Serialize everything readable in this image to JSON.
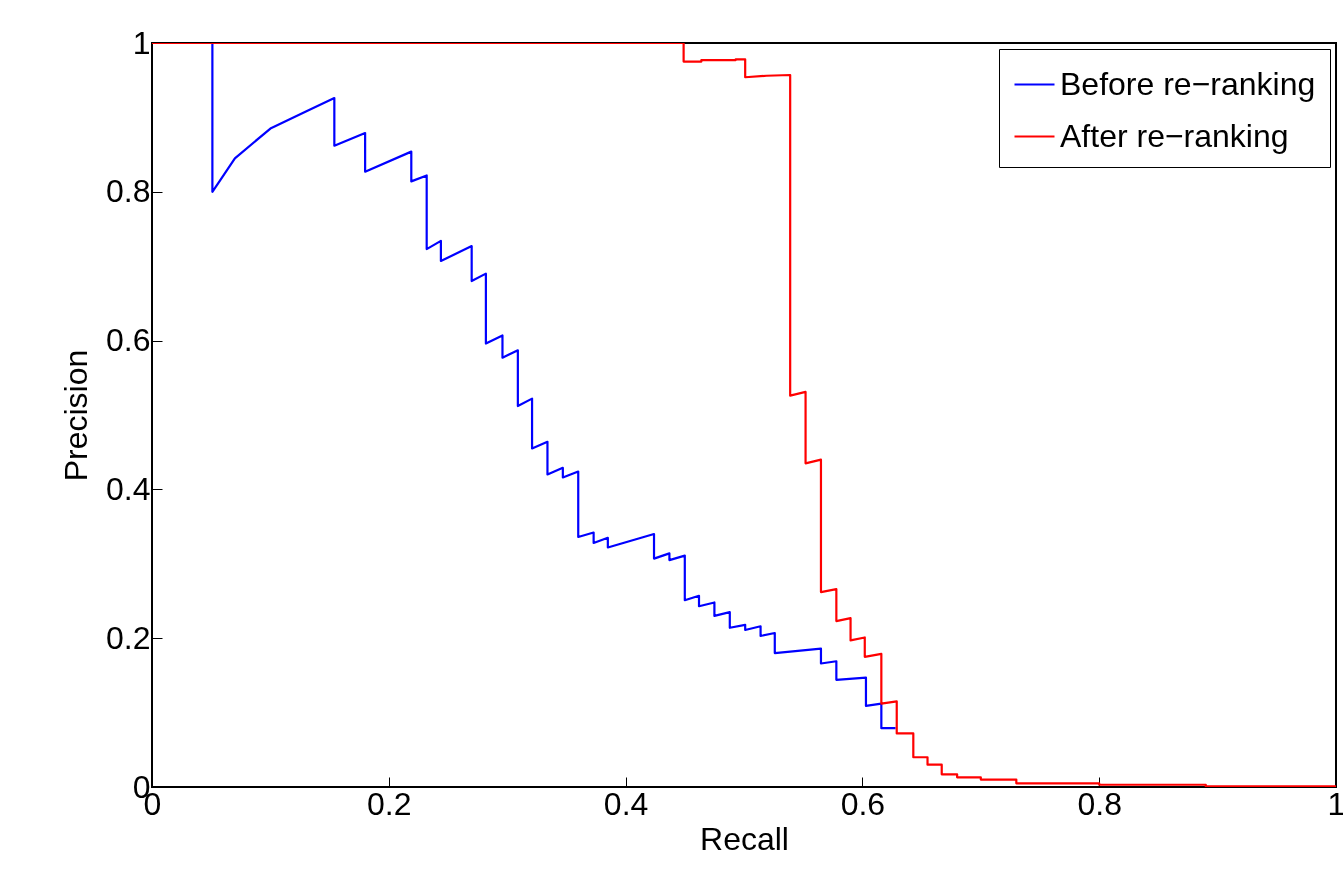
{
  "chart_data": {
    "type": "line",
    "xlabel": "Recall",
    "ylabel": "Precision",
    "xlim": [
      0,
      1
    ],
    "ylim": [
      0,
      1
    ],
    "xticks": [
      0,
      0.2,
      0.4,
      0.6,
      0.8,
      1
    ],
    "yticks": [
      0,
      0.2,
      0.4,
      0.6,
      0.8,
      1
    ],
    "legend": "top right",
    "line_style": "solid",
    "marker": "none",
    "series": [
      {
        "name": "Before re−ranking",
        "color": "#0000ff",
        "x": [
          0.051,
          0.051,
          0.07,
          0.1,
          0.13,
          0.154,
          0.154,
          0.18,
          0.18,
          0.219,
          0.219,
          0.232,
          0.232,
          0.244,
          0.244,
          0.27,
          0.27,
          0.282,
          0.282,
          0.296,
          0.296,
          0.309,
          0.309,
          0.321,
          0.321,
          0.334,
          0.334,
          0.347,
          0.347,
          0.36,
          0.36,
          0.373,
          0.373,
          0.385,
          0.385,
          0.424,
          0.424,
          0.437,
          0.437,
          0.45,
          0.45,
          0.462,
          0.462,
          0.475,
          0.475,
          0.488,
          0.488,
          0.501,
          0.501,
          0.514,
          0.514,
          0.526,
          0.526,
          0.565,
          0.565,
          0.578,
          0.578,
          0.603,
          0.603,
          0.616,
          0.616,
          0.628
        ],
        "values": [
          1,
          0.8,
          0.845,
          0.885,
          0.908,
          0.926,
          0.862,
          0.879,
          0.827,
          0.854,
          0.814,
          0.822,
          0.723,
          0.734,
          0.707,
          0.727,
          0.68,
          0.69,
          0.596,
          0.607,
          0.577,
          0.587,
          0.512,
          0.522,
          0.455,
          0.464,
          0.42,
          0.429,
          0.416,
          0.424,
          0.336,
          0.342,
          0.328,
          0.335,
          0.322,
          0.34,
          0.307,
          0.314,
          0.305,
          0.311,
          0.251,
          0.257,
          0.243,
          0.248,
          0.23,
          0.235,
          0.214,
          0.218,
          0.211,
          0.216,
          0.203,
          0.207,
          0.18,
          0.186,
          0.166,
          0.169,
          0.144,
          0.147,
          0.109,
          0.112,
          0.079,
          0.079
        ]
      },
      {
        "name": "After re−ranking",
        "color": "#ff0000",
        "x": [
          0,
          0.449,
          0.449,
          0.464,
          0.464,
          0.493,
          0.493,
          0.501,
          0.501,
          0.519,
          0.519,
          0.539,
          0.539,
          0.552,
          0.552,
          0.565,
          0.565,
          0.578,
          0.578,
          0.59,
          0.59,
          0.602,
          0.602,
          0.616,
          0.616,
          0.629,
          0.629,
          0.643,
          0.643,
          0.655,
          0.655,
          0.667,
          0.667,
          0.68,
          0.68,
          0.7,
          0.7,
          0.73,
          0.73,
          0.8,
          0.8,
          0.89,
          0.89,
          1
        ],
        "values": [
          1,
          1,
          0.975,
          0.975,
          0.977,
          0.977,
          0.978,
          0.978,
          0.954,
          0.956,
          0.956,
          0.957,
          0.526,
          0.531,
          0.435,
          0.44,
          0.262,
          0.266,
          0.223,
          0.227,
          0.197,
          0.201,
          0.175,
          0.179,
          0.112,
          0.115,
          0.072,
          0.072,
          0.04,
          0.04,
          0.03,
          0.03,
          0.017,
          0.017,
          0.013,
          0.013,
          0.01,
          0.01,
          0.005,
          0.005,
          0.003,
          0.003,
          0.001,
          0.001
        ]
      }
    ]
  }
}
